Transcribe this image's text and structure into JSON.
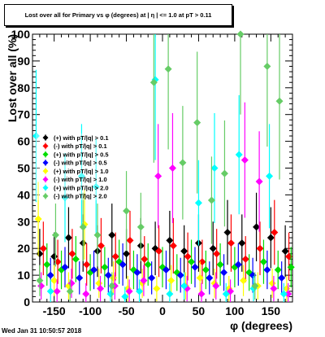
{
  "header": {
    "title": "Lost over all for Primary vs φ (degrees) at | η | <= 1.0 at pT > 0.11"
  },
  "footer": {
    "timestamp": "Wed Jan 31 10:50:57 2018"
  },
  "chart_data": {
    "type": "scatter",
    "title": "Lost over all for Primary vs φ (degrees) at | η | <= 1.0 at pT > 0.11",
    "xlabel": "φ (degrees)",
    "ylabel": "Lost over all (%)",
    "xlim": [
      -180,
      180
    ],
    "ylim": [
      0,
      100
    ],
    "x_ticks": [
      -150,
      -100,
      -50,
      0,
      50,
      100,
      150
    ],
    "y_ticks": [
      0,
      10,
      20,
      30,
      40,
      50,
      60,
      70,
      80,
      90,
      100
    ],
    "grid": false,
    "legend_placement": "middle-left",
    "series": [
      {
        "name": "(+) with pT/|q| > 0.1",
        "color": "#000000",
        "points": [
          [
            -170,
            18
          ],
          [
            -150,
            17
          ],
          [
            -130,
            24
          ],
          [
            -110,
            22
          ],
          [
            -90,
            19
          ],
          [
            -70,
            25
          ],
          [
            -50,
            18
          ],
          [
            -30,
            21
          ],
          [
            -10,
            20
          ],
          [
            10,
            23
          ],
          [
            30,
            19
          ],
          [
            50,
            22
          ],
          [
            70,
            20
          ],
          [
            90,
            26
          ],
          [
            110,
            22
          ],
          [
            130,
            28
          ],
          [
            150,
            24
          ],
          [
            170,
            19
          ]
        ]
      },
      {
        "name": "(-) with pT/|q| > 0.1",
        "color": "#ff0000",
        "points": [
          [
            -165,
            20
          ],
          [
            -145,
            15
          ],
          [
            -125,
            18
          ],
          [
            -105,
            14
          ],
          [
            -85,
            21
          ],
          [
            -65,
            17
          ],
          [
            -45,
            23
          ],
          [
            -25,
            16
          ],
          [
            -5,
            19
          ],
          [
            15,
            21
          ],
          [
            35,
            17
          ],
          [
            55,
            15
          ],
          [
            75,
            18
          ],
          [
            95,
            22
          ],
          [
            115,
            16
          ],
          [
            135,
            20
          ],
          [
            155,
            26
          ],
          [
            175,
            17
          ]
        ]
      },
      {
        "name": "(+) with pT/|q| > 0.5",
        "color": "#00dd00",
        "points": [
          [
            -160,
            14
          ],
          [
            -140,
            12
          ],
          [
            -120,
            16
          ],
          [
            -100,
            11
          ],
          [
            -80,
            13
          ],
          [
            -60,
            15
          ],
          [
            -40,
            12
          ],
          [
            -20,
            14
          ],
          [
            0,
            13
          ],
          [
            20,
            11
          ],
          [
            40,
            15
          ],
          [
            60,
            12
          ],
          [
            80,
            14
          ],
          [
            100,
            13
          ],
          [
            120,
            11
          ],
          [
            140,
            15
          ],
          [
            160,
            12
          ],
          [
            178,
            13
          ]
        ]
      },
      {
        "name": "(-) with pT/|q| > 0.5",
        "color": "#0000ff",
        "points": [
          [
            -155,
            10
          ],
          [
            -135,
            13
          ],
          [
            -115,
            9
          ],
          [
            -95,
            12
          ],
          [
            -75,
            10
          ],
          [
            -55,
            14
          ],
          [
            -35,
            11
          ],
          [
            -15,
            9
          ],
          [
            5,
            12
          ],
          [
            25,
            10
          ],
          [
            45,
            13
          ],
          [
            65,
            9
          ],
          [
            85,
            11
          ],
          [
            105,
            14
          ],
          [
            125,
            10
          ],
          [
            145,
            12
          ],
          [
            165,
            9
          ]
        ]
      },
      {
        "name": "(+) with pT/|q| > 1.0",
        "color": "#ffff00",
        "points": [
          [
            -172,
            31
          ],
          [
            -150,
            8
          ],
          [
            -130,
            6
          ],
          [
            -108,
            29
          ],
          [
            -88,
            7
          ],
          [
            -68,
            9
          ],
          [
            -48,
            5
          ],
          [
            -28,
            7
          ],
          [
            -8,
            5
          ],
          [
            12,
            8
          ],
          [
            32,
            6
          ],
          [
            52,
            9
          ],
          [
            72,
            7
          ],
          [
            92,
            5
          ],
          [
            112,
            8
          ],
          [
            132,
            6
          ],
          [
            152,
            7
          ],
          [
            172,
            5
          ]
        ]
      },
      {
        "name": "(-) with pT/|q| > 1.0",
        "color": "#ff00ff",
        "points": [
          [
            -168,
            6
          ],
          [
            -146,
            4
          ],
          [
            -126,
            7
          ],
          [
            -106,
            3
          ],
          [
            -86,
            5
          ],
          [
            -66,
            6
          ],
          [
            -46,
            4
          ],
          [
            -26,
            8
          ],
          [
            -6,
            47
          ],
          [
            14,
            50
          ],
          [
            34,
            5
          ],
          [
            54,
            3
          ],
          [
            74,
            6
          ],
          [
            94,
            4
          ],
          [
            114,
            53
          ],
          [
            134,
            45
          ],
          [
            154,
            5
          ],
          [
            174,
            3
          ]
        ]
      },
      {
        "name": "(+) with pT/|q| > 2.0",
        "color": "#00ffff",
        "points": [
          [
            -175,
            62
          ],
          [
            -155,
            4
          ],
          [
            -135,
            39
          ],
          [
            -112,
            47
          ],
          [
            -92,
            43
          ],
          [
            -72,
            3
          ],
          [
            -52,
            2
          ],
          [
            -32,
            4
          ],
          [
            -10,
            83
          ],
          [
            10,
            3
          ],
          [
            30,
            6
          ],
          [
            50,
            37
          ],
          [
            72,
            50
          ],
          [
            88,
            3
          ],
          [
            106,
            55
          ],
          [
            126,
            5
          ],
          [
            148,
            47
          ],
          [
            168,
            3
          ]
        ]
      },
      {
        "name": "(-) with pT/|q| > 2.0",
        "color": "#66cc66",
        "points": [
          [
            -170,
            8
          ],
          [
            -148,
            25
          ],
          [
            -128,
            4
          ],
          [
            -110,
            28
          ],
          [
            -90,
            25
          ],
          [
            -70,
            6
          ],
          [
            -50,
            34
          ],
          [
            -30,
            28
          ],
          [
            -12,
            82
          ],
          [
            8,
            87
          ],
          [
            28,
            52
          ],
          [
            48,
            67
          ],
          [
            68,
            38
          ],
          [
            86,
            48
          ],
          [
            108,
            100
          ],
          [
            128,
            6
          ],
          [
            145,
            88
          ],
          [
            162,
            75
          ]
        ]
      }
    ]
  }
}
